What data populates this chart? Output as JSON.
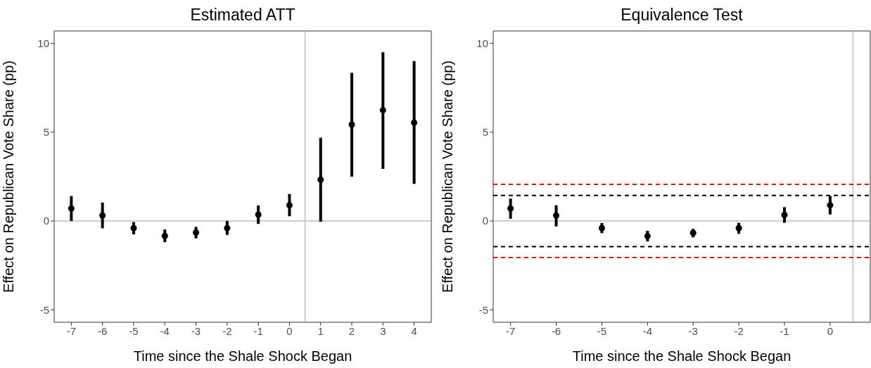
{
  "chart_data": [
    {
      "type": "scatter",
      "title": "Estimated ATT",
      "xlabel": "Time since the Shale Shock Began",
      "ylabel": "Effect on Republican Vote Share (pp)",
      "marker": "circle",
      "color": "#000000",
      "x": [
        -7,
        -6,
        -5,
        -4,
        -3,
        -2,
        -1,
        0,
        1,
        2,
        3,
        4
      ],
      "values": [
        0.71,
        0.31,
        -0.4,
        -0.84,
        -0.65,
        -0.4,
        0.36,
        0.89,
        2.33,
        5.43,
        6.24,
        5.54
      ],
      "errors": [
        [
          0.0,
          1.41
        ],
        [
          -0.41,
          1.04
        ],
        [
          -0.75,
          -0.06
        ],
        [
          -1.19,
          -0.48
        ],
        [
          -0.98,
          -0.33
        ],
        [
          -0.78,
          0.0
        ],
        [
          -0.16,
          0.87
        ],
        [
          0.27,
          1.52
        ],
        [
          -0.04,
          4.69
        ],
        [
          2.5,
          8.34
        ],
        [
          2.94,
          9.5
        ],
        [
          2.09,
          9.01
        ]
      ],
      "xlim": [
        -7.55,
        4.55
      ],
      "ylim": [
        -5.7,
        10.7
      ],
      "xticks": [
        -7,
        -6,
        -5,
        -4,
        -3,
        -2,
        -1,
        0,
        1,
        2,
        3,
        4
      ],
      "yticks": [
        -5,
        0,
        5,
        10
      ],
      "grid": false,
      "ref_lines": [
        {
          "axis": "y",
          "value": 0,
          "color": "#bebebe",
          "line_style": "solid"
        },
        {
          "axis": "x",
          "value": 0.5,
          "color": "#bebebe",
          "line_style": "solid"
        }
      ]
    },
    {
      "type": "scatter",
      "title": "Equivalence Test",
      "xlabel": "Time since the Shale Shock Began",
      "ylabel": "Effect on Republican Vote Share (pp)",
      "marker": "circle",
      "color": "#000000",
      "x": [
        -7,
        -6,
        -5,
        -4,
        -3,
        -2,
        -1,
        0
      ],
      "values": [
        0.71,
        0.31,
        -0.4,
        -0.85,
        -0.67,
        -0.4,
        0.34,
        0.89
      ],
      "errors": [
        [
          0.13,
          1.26
        ],
        [
          -0.3,
          0.89
        ],
        [
          -0.68,
          -0.11
        ],
        [
          -1.15,
          -0.55
        ],
        [
          -0.92,
          -0.44
        ],
        [
          -0.72,
          -0.1
        ],
        [
          -0.1,
          0.78
        ],
        [
          0.37,
          1.41
        ]
      ],
      "xlim": [
        -7.38,
        0.88
      ],
      "ylim": [
        -5.7,
        10.7
      ],
      "xticks": [
        -7,
        -6,
        -5,
        -4,
        -3,
        -2,
        -1,
        0
      ],
      "yticks": [
        -5,
        0,
        5,
        10
      ],
      "grid": false,
      "ref_lines": [
        {
          "axis": "y",
          "value": 0,
          "color": "#bebebe",
          "line_style": "solid"
        },
        {
          "axis": "x",
          "value": 0.5,
          "color": "#bebebe",
          "line_style": "solid"
        },
        {
          "axis": "y",
          "value": 2.06,
          "color": "#ff0000",
          "line_style": "dashed"
        },
        {
          "axis": "y",
          "value": 1.44,
          "color": "#000000",
          "line_style": "dashed"
        },
        {
          "axis": "y",
          "value": -1.44,
          "color": "#000000",
          "line_style": "dashed"
        },
        {
          "axis": "y",
          "value": -2.06,
          "color": "#ff0000",
          "line_style": "dashed"
        }
      ]
    }
  ]
}
